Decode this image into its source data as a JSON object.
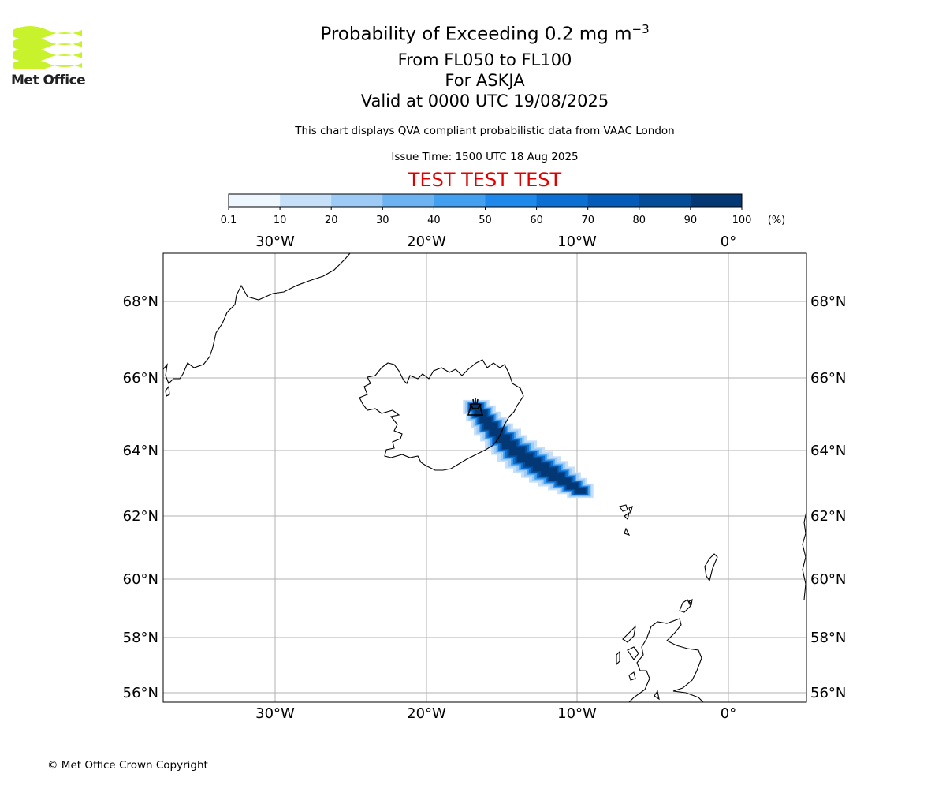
{
  "logo": {
    "text": "Met Office",
    "color": "#c8f22c"
  },
  "title": {
    "line1": "Probability of Exceeding 0.2 mg m",
    "line1_sup": "−3",
    "line2": "From FL050 to FL100",
    "line3": "For ASKJA",
    "line4": "Valid at 0000 UTC 19/08/2025"
  },
  "subtitle": "This chart displays QVA compliant probabilistic data from VAAC London",
  "issue_time": "Issue Time: 1500 UTC 18 Aug 2025",
  "test_banner": "TEST TEST TEST",
  "colorbar": {
    "ticks": [
      "0.1",
      "10",
      "20",
      "30",
      "40",
      "50",
      "60",
      "70",
      "80",
      "90",
      "100"
    ],
    "unit": "(%)",
    "colors": [
      "#eef6ff",
      "#c6e0fa",
      "#9dcbf5",
      "#6db2f1",
      "#43a0f0",
      "#1f88eb",
      "#0c6fd4",
      "#045cb8",
      "#044c98",
      "#033874"
    ]
  },
  "map": {
    "lon_labels": [
      "30°W",
      "20°W",
      "10°W",
      "0°"
    ],
    "lat_labels": [
      "68°N",
      "66°N",
      "64°N",
      "62°N",
      "60°N",
      "58°N",
      "56°N"
    ],
    "volcano_icon": "volcano-icon"
  },
  "copyright": "© Met Office Crown Copyright"
}
